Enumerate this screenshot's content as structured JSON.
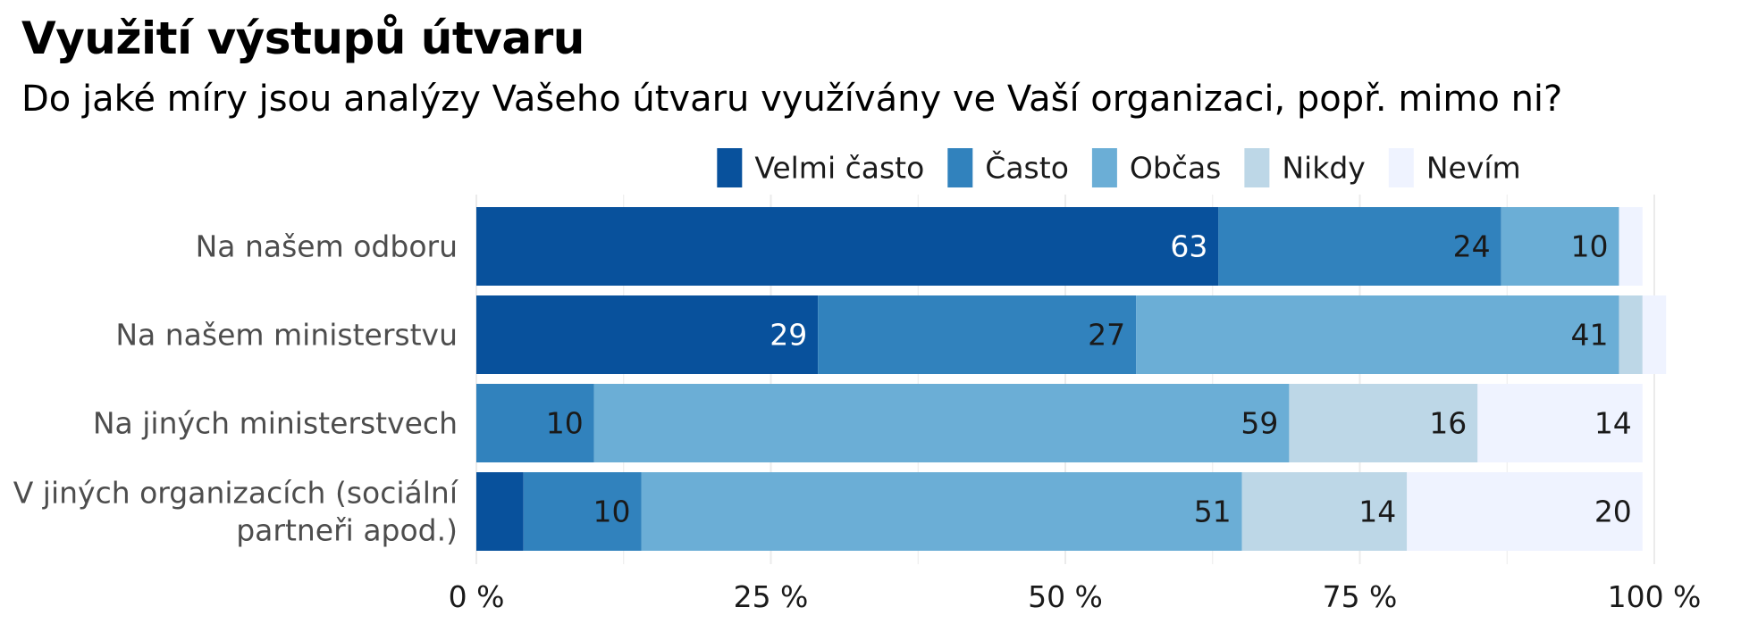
{
  "title": "Využití výstupů útvaru",
  "subtitle": "Do jaké míry jsou analýzy Vašeho útvaru využívány ve Vaší organizaci, popř. mimo ni?",
  "chart_data": {
    "type": "bar",
    "orientation": "horizontal",
    "stacked": true,
    "categories": [
      [
        "Na našem odboru"
      ],
      [
        "Na našem ministerstvu"
      ],
      [
        "Na jiných ministerstvech"
      ],
      [
        "V jiných organizacích (sociální",
        "partneři apod.)"
      ]
    ],
    "series": [
      {
        "name": "Velmi často",
        "color": "#08519c",
        "values": [
          63,
          29,
          0,
          4
        ]
      },
      {
        "name": "Často",
        "color": "#3182bd",
        "values": [
          24,
          27,
          10,
          10
        ]
      },
      {
        "name": "Občas",
        "color": "#6baed6",
        "values": [
          10,
          41,
          59,
          51
        ]
      },
      {
        "name": "Nikdy",
        "color": "#bdd7e7",
        "values": [
          0,
          2,
          16,
          14
        ]
      },
      {
        "name": "Nevím",
        "color": "#eff3ff",
        "values": [
          2,
          2,
          14,
          20
        ]
      }
    ],
    "value_labels": [
      [
        "63",
        "24",
        "10",
        "",
        ""
      ],
      [
        "29",
        "27",
        "41",
        "",
        ""
      ],
      [
        "",
        "10",
        "59",
        "16",
        "14"
      ],
      [
        "",
        "10",
        "51",
        "14",
        "20"
      ]
    ],
    "x_ticks": [
      "0 %",
      "25 %",
      "50 %",
      "75 %",
      "100 %"
    ],
    "xlim": [
      0,
      100
    ],
    "xlabel": "",
    "ylabel": "",
    "legend_position": "top",
    "grid": true
  }
}
